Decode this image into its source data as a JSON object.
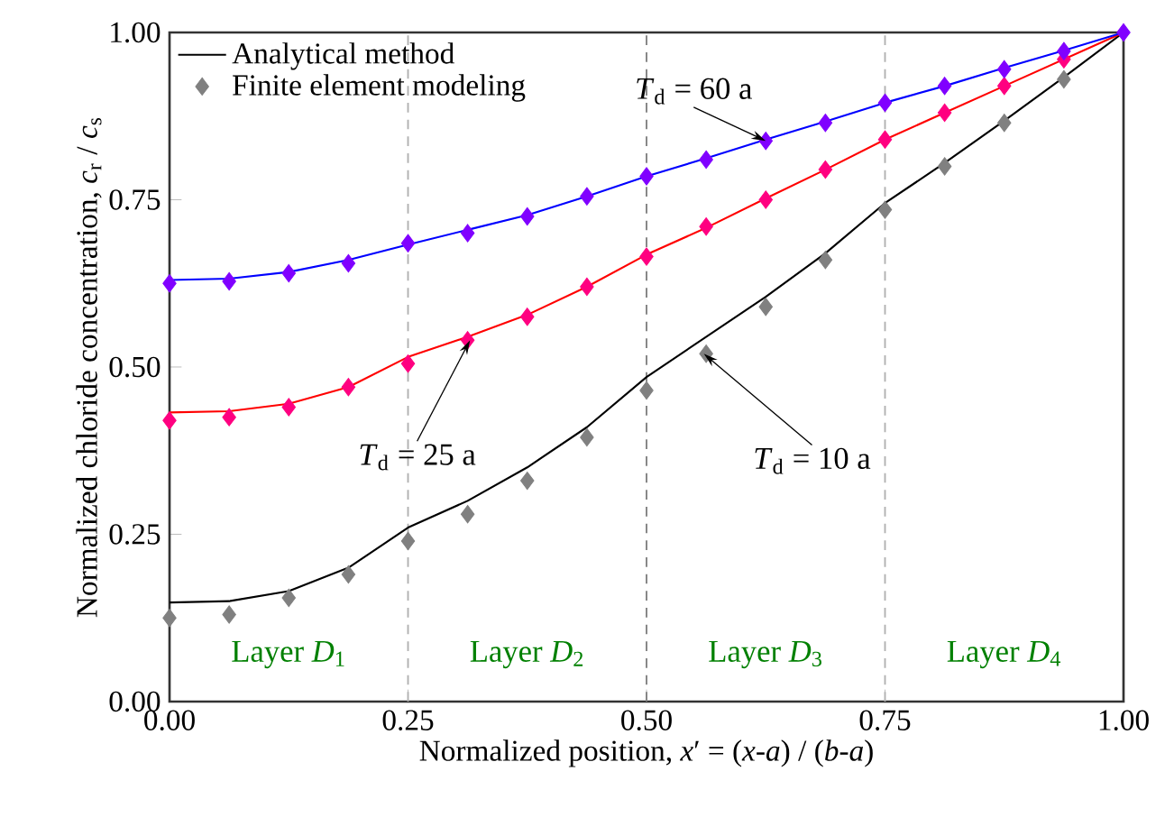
{
  "chart_data": {
    "type": "line",
    "xlabel": "Normalized position, *x*′ = (*x*-*a*) / (*b*-*a*)",
    "ylabel": "Normalized chloride concentration, *c*$_{r}$ / *c*$_{s}$",
    "xlim": [
      0,
      1
    ],
    "ylim": [
      0,
      1
    ],
    "xticks": [
      {
        "value": 0,
        "label": "0.00"
      },
      {
        "value": 0.25,
        "label": "0.25"
      },
      {
        "value": 0.5,
        "label": "0.50"
      },
      {
        "value": 0.75,
        "label": "0.75"
      },
      {
        "value": 1,
        "label": "1.00"
      }
    ],
    "yticks": [
      {
        "value": 0,
        "label": "0.00"
      },
      {
        "value": 0.25,
        "label": "0.25"
      },
      {
        "value": 0.5,
        "label": "0.50"
      },
      {
        "value": 0.75,
        "label": "0.75"
      },
      {
        "value": 1,
        "label": "1.00"
      }
    ],
    "x": [
      0,
      0.0625,
      0.125,
      0.1875,
      0.25,
      0.3125,
      0.375,
      0.4375,
      0.5,
      0.5625,
      0.625,
      0.6875,
      0.75,
      0.8125,
      0.875,
      0.9375,
      1
    ],
    "series": [
      {
        "type": "line",
        "name": "Analytical method",
        "color": "#000000",
        "marker": "none",
        "values": [
          0.148,
          0.15,
          0.165,
          0.2,
          0.26,
          0.3,
          0.35,
          0.41,
          0.485,
          0.545,
          0.605,
          0.67,
          0.745,
          0.805,
          0.868,
          0.933,
          1.0
        ]
      },
      {
        "type": "line",
        "color": "#ff0000",
        "marker": "none",
        "values": [
          0.432,
          0.434,
          0.445,
          0.47,
          0.515,
          0.545,
          0.578,
          0.62,
          0.668,
          0.708,
          0.752,
          0.795,
          0.84,
          0.88,
          0.92,
          0.96,
          1.0
        ]
      },
      {
        "type": "line",
        "color": "#0000ff",
        "marker": "none",
        "values": [
          0.63,
          0.632,
          0.642,
          0.66,
          0.683,
          0.705,
          0.727,
          0.755,
          0.785,
          0.812,
          0.84,
          0.867,
          0.895,
          0.92,
          0.947,
          0.973,
          1.0
        ]
      },
      {
        "type": "scatter",
        "name": "Finite element modeling",
        "color": "#808080",
        "marker": "diamond",
        "values": [
          0.125,
          0.13,
          0.155,
          0.19,
          0.24,
          0.28,
          0.33,
          0.395,
          0.465,
          0.52,
          0.59,
          0.66,
          0.735,
          0.8,
          0.865,
          0.93,
          null
        ]
      },
      {
        "type": "scatter",
        "color": "#ff0080",
        "marker": "diamond",
        "values": [
          0.42,
          0.425,
          0.44,
          0.47,
          0.505,
          0.54,
          0.575,
          0.62,
          0.665,
          0.71,
          0.75,
          0.795,
          0.84,
          0.88,
          0.92,
          0.96,
          null
        ]
      },
      {
        "type": "scatter",
        "color": "#8000ff",
        "marker": "diamond",
        "values": [
          0.625,
          0.628,
          0.64,
          0.655,
          0.685,
          0.7,
          0.725,
          0.755,
          0.785,
          0.81,
          0.838,
          0.865,
          0.895,
          0.92,
          0.945,
          0.972,
          1.0
        ]
      }
    ],
    "ref_lines": [
      {
        "axis": "x",
        "value": 0.25,
        "color": "#b0b0b0",
        "line_style": "dashed"
      },
      {
        "axis": "x",
        "value": 0.5,
        "color": "#808080",
        "line_style": "dashed"
      },
      {
        "axis": "x",
        "value": 0.75,
        "color": "#b0b0b0",
        "line_style": "dashed"
      }
    ],
    "annotations": [
      {
        "text": "*T*$_{d}$ = 60 a",
        "x": 0.625,
        "y": 0.838
      },
      {
        "text": "*T*$_{d}$ = 25 a",
        "x": 0.315,
        "y": 0.54
      },
      {
        "text": "*T*$_{d}$ = 10 a",
        "x": 0.56,
        "y": 0.52
      },
      "Layer *D*$_{1}$",
      "Layer *D*$_{2}$",
      "Layer *D*$_{3}$",
      "Layer *D*$_{4}$"
    ],
    "legend": "top left",
    "grid": false
  }
}
